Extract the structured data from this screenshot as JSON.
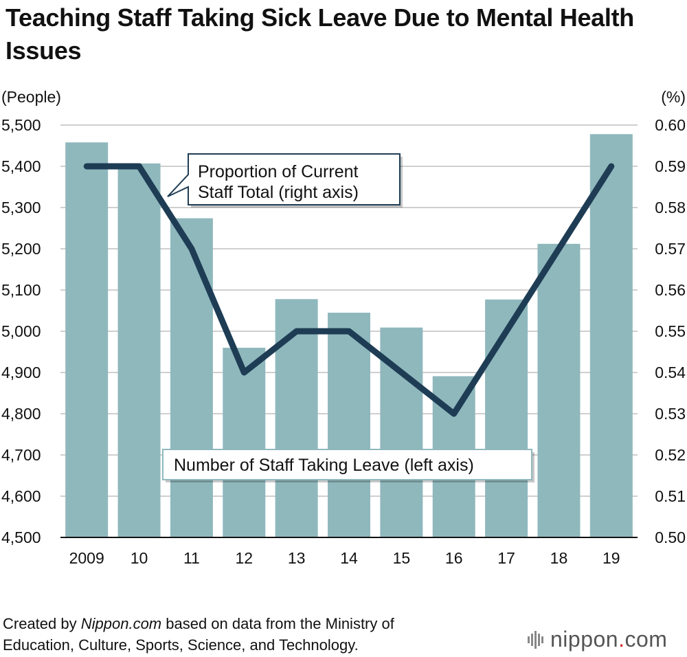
{
  "title": "Teaching Staff Taking Sick Leave Due to Mental Health Issues",
  "chart_data": {
    "type": "bar",
    "categories": [
      "2009",
      "10",
      "11",
      "12",
      "13",
      "14",
      "15",
      "16",
      "17",
      "18",
      "19"
    ],
    "series": [
      {
        "name": "Number of Staff Taking Leave (left axis)",
        "type": "bar",
        "axis": "left",
        "color": "#8fb8bd",
        "values": [
          5458,
          5407,
          5274,
          4960,
          5078,
          5045,
          5009,
          4891,
          5077,
          5212,
          5478
        ]
      },
      {
        "name": "Proportion of Current Staff Total (right axis)",
        "type": "line",
        "axis": "right",
        "color": "#1e3d55",
        "values": [
          0.59,
          0.59,
          0.57,
          0.54,
          0.55,
          0.55,
          0.54,
          0.53,
          0.55,
          0.57,
          0.59
        ]
      }
    ],
    "ylabel_left": "(People)",
    "ylabel_right": "(%)",
    "ylim_left": [
      4500,
      5500
    ],
    "ylim_right": [
      0.5,
      0.6
    ],
    "yticks_left": [
      "4,500",
      "4,600",
      "4,700",
      "4,800",
      "4,900",
      "5,000",
      "5,100",
      "5,200",
      "5,300",
      "5,400",
      "5,500"
    ],
    "yticks_right": [
      "0.50",
      "0.51",
      "0.52",
      "0.53",
      "0.54",
      "0.55",
      "0.56",
      "0.57",
      "0.58",
      "0.59",
      "0.60"
    ],
    "grid": true,
    "annotations": {
      "line_label_1": "Proportion of Current",
      "line_label_2": "Staff Total (right axis)",
      "bar_label": "Number of Staff Taking Leave (left axis)"
    }
  },
  "footer": {
    "prefix": "Created by ",
    "site": "Nippon.com",
    "suffix": " based on data from the Ministry of",
    "line2": "Education, Culture, Sports, Science, and Technology."
  },
  "logo": {
    "name": "nippon",
    "dot": ".",
    "tld": "com"
  }
}
